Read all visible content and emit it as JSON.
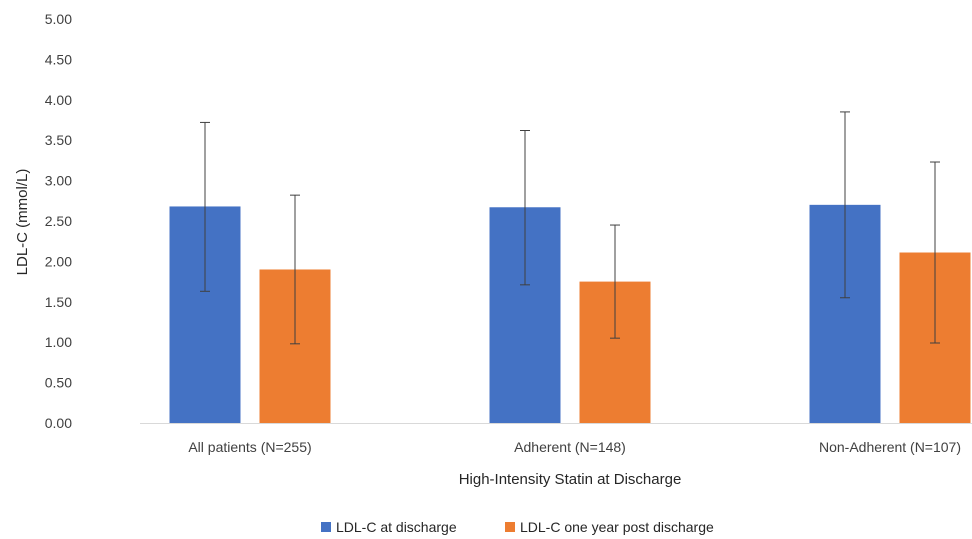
{
  "chart_data": {
    "type": "bar",
    "title": "",
    "xlabel": "High-Intensity Statin at Discharge",
    "ylabel": "LDL-C (mmol/L)",
    "ylim": [
      0,
      5
    ],
    "yticks": [
      "0.00",
      "0.50",
      "1.00",
      "1.50",
      "2.00",
      "2.50",
      "3.00",
      "3.50",
      "4.00",
      "4.50",
      "5.00"
    ],
    "grid": false,
    "legend_position": "bottom",
    "categories": [
      "All patients (N=255)",
      "Adherent (N=148)",
      "Non-Adherent (N=107)"
    ],
    "series": [
      {
        "name": "LDL-C at discharge",
        "color": "#4472C4",
        "values": [
          2.68,
          2.67,
          2.7
        ],
        "error_low": [
          1.63,
          1.71,
          1.55
        ],
        "error_high": [
          3.72,
          3.62,
          3.85
        ]
      },
      {
        "name": "LDL-C one year post discharge",
        "color": "#ED7D31",
        "values": [
          1.9,
          1.75,
          2.11
        ],
        "error_low": [
          0.98,
          1.05,
          0.99
        ],
        "error_high": [
          2.82,
          2.45,
          3.23
        ]
      }
    ]
  }
}
